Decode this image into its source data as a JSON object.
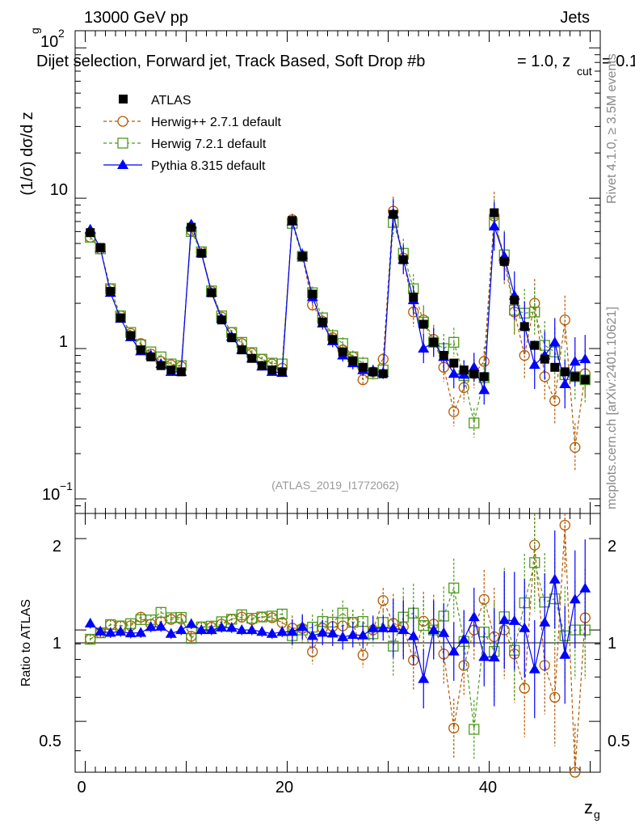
{
  "header": {
    "energy": "13000 GeV pp",
    "category": "Jets",
    "selection_title": "Dijet selection, Forward jet, Track Based, Soft Drop #b",
    "beta_text": "= 1.0, z",
    "beta_sub": "cut",
    "beta_tail": "= 0.1"
  },
  "side_labels": {
    "rivet": "Rivet 4.1.0, ≥ 3.5M events",
    "mcplots": "mcplots.cern.ch [arXiv:2401.10621]"
  },
  "watermark": "(ATLAS_2019_I1772062)",
  "axes": {
    "ylabel_main": "(1/σ) dσ/d z",
    "ylabel_main_sub": "g",
    "ylabel_ratio": "Ratio to ATLAS",
    "xlabel": "z",
    "xlabel_sub": "g",
    "xtick_labels": [
      "0",
      "20",
      "40"
    ],
    "ytick_labels_main": {
      "t100": "10",
      "t100_exp": "2",
      "t10": "10",
      "t1": "1",
      "t01": "10",
      "t01_exp": "−1"
    },
    "ytick_labels_ratio": [
      "2",
      "1",
      "0.5"
    ]
  },
  "colors": {
    "atlas": "#000000",
    "herwigpp": "#b35900",
    "herwig7": "#4c9a1e",
    "pythia": "#0000ff"
  },
  "chart_data": {
    "type": "scatter",
    "x": [
      0.5,
      1.5,
      2.5,
      3.5,
      4.5,
      5.5,
      6.5,
      7.5,
      8.5,
      9.5,
      10.5,
      11.5,
      12.5,
      13.5,
      14.5,
      15.5,
      16.5,
      17.5,
      18.5,
      19.5,
      20.5,
      21.5,
      22.5,
      23.5,
      24.5,
      25.5,
      26.5,
      27.5,
      28.5,
      29.5,
      30.5,
      31.5,
      32.5,
      33.5,
      34.5,
      35.5,
      36.5,
      37.5,
      38.5,
      39.5,
      40.5,
      41.5,
      42.5,
      43.5,
      44.5,
      45.5,
      46.5,
      47.5,
      48.5,
      49.5
    ],
    "xlim": [
      -1,
      51
    ],
    "ylim_main": [
      0.08,
      130
    ],
    "ylim_ratio": [
      0.34,
      2.42
    ],
    "legend": [
      "ATLAS",
      "Herwig++ 2.7.1 default",
      "Herwig 7.2.1 default",
      "Pythia 8.315 default"
    ],
    "series": [
      {
        "name": "ATLAS",
        "key": "atlas",
        "values": [
          5.9,
          4.7,
          2.4,
          1.6,
          1.22,
          0.98,
          0.88,
          0.77,
          0.72,
          0.7,
          6.4,
          4.3,
          2.35,
          1.55,
          1.18,
          0.98,
          0.86,
          0.77,
          0.72,
          0.7,
          7.1,
          4.1,
          2.3,
          1.5,
          1.15,
          0.95,
          0.83,
          0.75,
          0.7,
          0.68,
          7.8,
          3.9,
          2.2,
          1.45,
          1.1,
          0.9,
          0.8,
          0.72,
          0.68,
          0.65,
          8.0,
          3.8,
          2.1,
          1.4,
          1.05,
          0.85,
          0.75,
          0.7,
          0.65,
          0.62
        ]
      },
      {
        "name": "Herwig++ 2.7.1 default",
        "key": "herwigpp",
        "values": [
          5.5,
          4.6,
          2.5,
          1.65,
          1.26,
          1.08,
          0.92,
          0.82,
          0.78,
          0.76,
          6.1,
          4.4,
          2.4,
          1.62,
          1.28,
          1.08,
          0.93,
          0.85,
          0.79,
          0.74,
          7.2,
          4.15,
          1.95,
          1.52,
          1.18,
          0.98,
          0.88,
          0.62,
          0.7,
          0.85,
          8.2,
          4.0,
          1.75,
          1.55,
          1.15,
          0.75,
          0.38,
          0.55,
          0.68,
          0.82,
          7.6,
          3.8,
          1.75,
          0.9,
          2.0,
          0.65,
          0.45,
          1.55,
          0.22,
          0.68
        ]
      },
      {
        "name": "Herwig 7.2.1 default",
        "key": "herwig7",
        "values": [
          5.5,
          4.6,
          2.5,
          1.65,
          1.28,
          1.06,
          0.95,
          0.88,
          0.79,
          0.77,
          6.0,
          4.4,
          2.42,
          1.65,
          1.28,
          1.1,
          0.94,
          0.85,
          0.8,
          0.79,
          6.8,
          4.1,
          2.35,
          1.6,
          1.22,
          1.08,
          0.88,
          0.8,
          0.68,
          0.72,
          6.9,
          4.3,
          2.5,
          1.5,
          1.1,
          1.0,
          1.1,
          0.66,
          0.32,
          0.64,
          6.8,
          4.2,
          1.8,
          1.72,
          1.75,
          1.05,
          0.95,
          0.67,
          0.65,
          0.62
        ]
      },
      {
        "name": "Pythia 8.315 default",
        "key": "pythia",
        "values": [
          6.2,
          4.65,
          2.35,
          1.58,
          1.19,
          0.96,
          0.9,
          0.79,
          0.7,
          0.7,
          6.7,
          4.3,
          2.35,
          1.58,
          1.2,
          0.98,
          0.86,
          0.76,
          0.7,
          0.69,
          7.0,
          4.2,
          2.2,
          1.47,
          1.12,
          0.9,
          0.8,
          0.72,
          0.71,
          0.69,
          7.9,
          3.9,
          2.1,
          1.0,
          1.1,
          0.88,
          0.68,
          0.67,
          0.75,
          0.53,
          6.5,
          4.1,
          2.25,
          1.42,
          0.78,
          0.9,
          1.1,
          0.58,
          0.82,
          0.85
        ]
      }
    ]
  }
}
